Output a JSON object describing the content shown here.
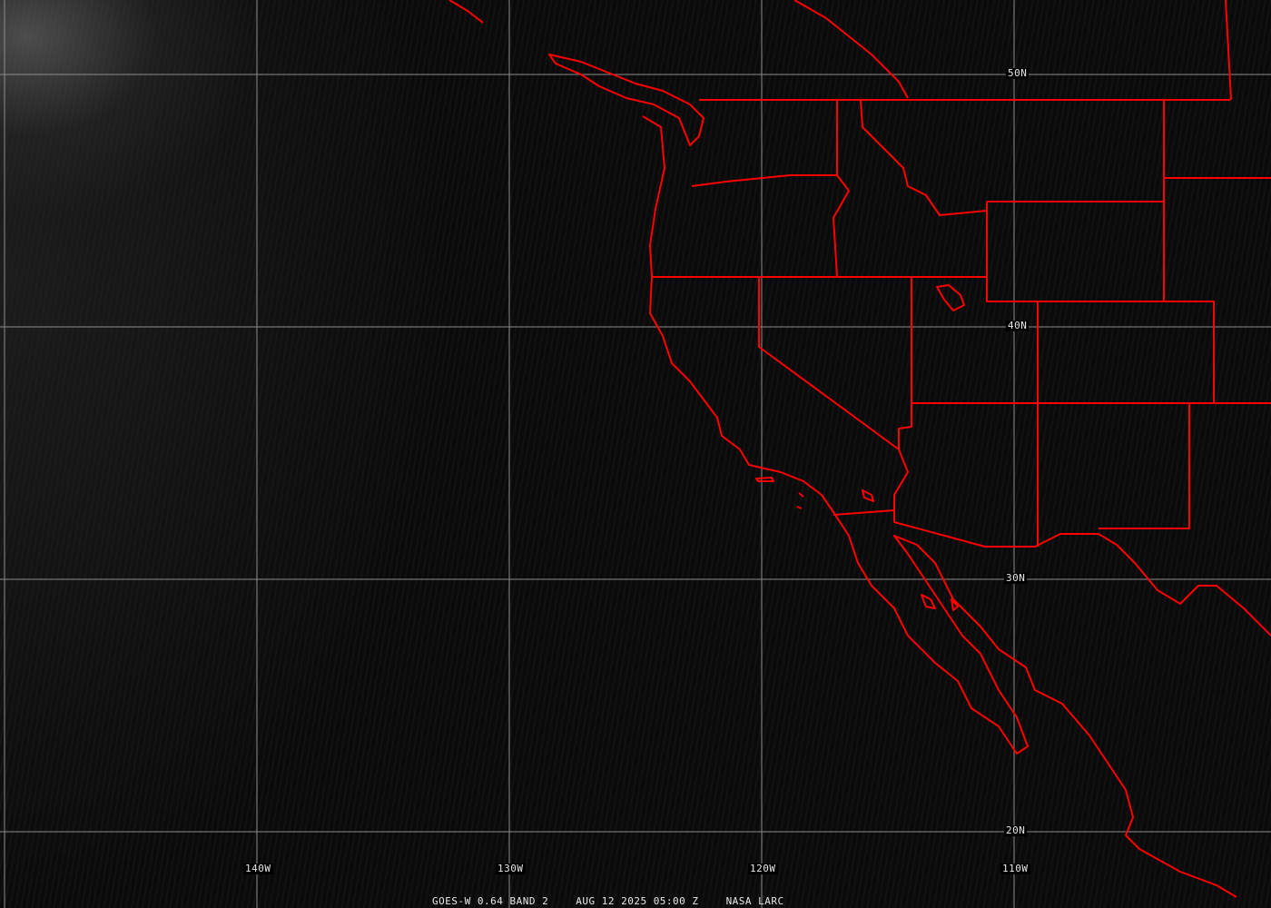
{
  "colors": {
    "borders": "#ff0000",
    "grid": "#8c8c8c",
    "labels": "#e8e8e8"
  },
  "lat_labels": [
    "50N",
    "40N",
    "30N",
    "20N"
  ],
  "lon_labels": [
    "140W",
    "130W",
    "120W",
    "110W"
  ],
  "caption": {
    "product": "GOES-W 0.64 BAND 2",
    "datetime": "AUG 12 2025 05:00 Z",
    "source": "NASA LARC"
  }
}
